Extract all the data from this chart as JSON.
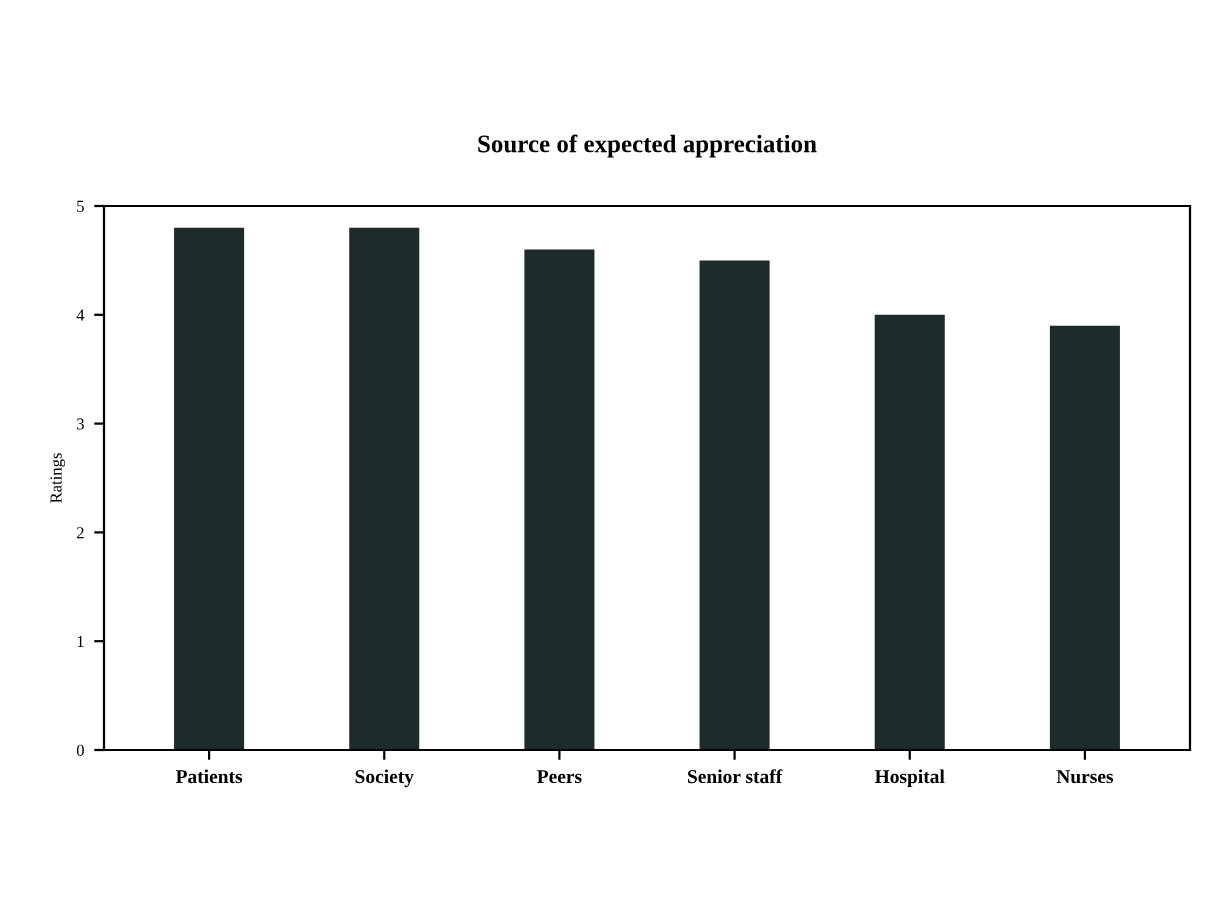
{
  "chart_data": {
    "type": "bar",
    "title": "Source of expected appreciation",
    "ylabel": "Ratings",
    "categories": [
      "Patients",
      "Society",
      "Peers",
      "Senior staff",
      "Hospital",
      "Nurses"
    ],
    "values": [
      4.8,
      4.8,
      4.6,
      4.5,
      4.0,
      3.9
    ],
    "color": "#1f2b2b",
    "ylim": [
      0,
      5
    ],
    "yticks": [
      0,
      1,
      2,
      3,
      4,
      5
    ],
    "grid": false,
    "legend": false
  }
}
